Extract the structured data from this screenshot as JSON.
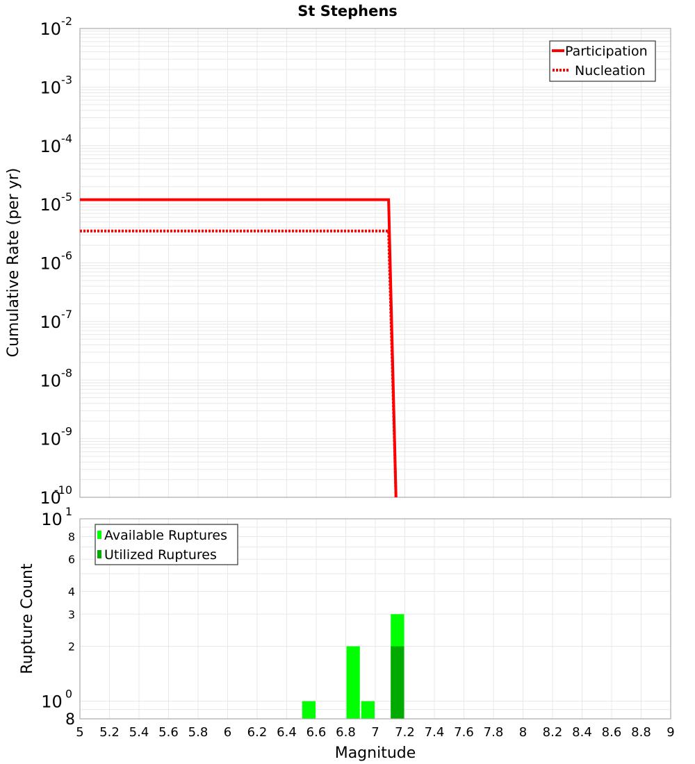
{
  "chart_data": [
    {
      "type": "line",
      "title": "St Stephens",
      "xlabel": "",
      "ylabel": "Cumulative Rate (per yr)",
      "xlim": [
        5,
        9
      ],
      "ylim": [
        1e-10,
        0.01
      ],
      "yscale": "log",
      "grid": true,
      "legend_position": "upper right",
      "y_ticks": [
        "10^-2",
        "10^-3",
        "10^-4",
        "10^-5",
        "10^-6",
        "10^-7",
        "10^-8",
        "10^-9",
        "10^-10"
      ],
      "series": [
        {
          "name": "Participation",
          "style": "solid",
          "color": "#ff0000",
          "x": [
            5.0,
            7.09,
            7.14
          ],
          "y": [
            1.2e-05,
            1.2e-05,
            1e-10
          ]
        },
        {
          "name": "Nucleation",
          "style": "dotted",
          "color": "#ff0000",
          "x": [
            5.0,
            7.09,
            7.14
          ],
          "y": [
            3.5e-06,
            3.5e-06,
            1e-10
          ]
        }
      ]
    },
    {
      "type": "bar",
      "title": "",
      "xlabel": "Magnitude",
      "ylabel": "Rupture Count",
      "xlim": [
        5,
        9
      ],
      "ylim": [
        0.8,
        10
      ],
      "yscale": "log",
      "grid": true,
      "legend_position": "upper left",
      "x_ticks": [
        "5",
        "5.2",
        "5.4",
        "5.6",
        "5.8",
        "6",
        "6.2",
        "6.4",
        "6.6",
        "6.8",
        "7",
        "7.2",
        "7.4",
        "7.6",
        "7.8",
        "8",
        "8.2",
        "8.4",
        "8.6",
        "8.8",
        "9"
      ],
      "y_ticks": [
        "8",
        "10^0",
        "2",
        "3",
        "4",
        "6",
        "8",
        "10^1"
      ],
      "bin_width": 0.1,
      "series": [
        {
          "name": "Available Ruptures",
          "color": "#00ff00",
          "bins": [
            6.55,
            6.85,
            6.95,
            7.15
          ],
          "values": [
            1,
            2,
            1,
            3
          ]
        },
        {
          "name": "Utilized Ruptures",
          "color": "#00aa00",
          "bins": [
            7.15
          ],
          "values": [
            2
          ]
        }
      ]
    }
  ],
  "labels": {
    "title": "St Stephens",
    "top_ylabel": "Cumulative Rate (per yr)",
    "bottom_ylabel": "Rupture Count",
    "xlabel": "Magnitude",
    "legend_top": [
      "Participation",
      "Nucleation"
    ],
    "legend_bottom": [
      "Available Ruptures",
      "Utilized Ruptures"
    ],
    "bottom_y_minor": [
      "8",
      "2",
      "3",
      "4",
      "6",
      "8"
    ],
    "bottom_y_major": [
      "10",
      "10"
    ],
    "bottom_y_major_exp": [
      "0",
      "1"
    ]
  }
}
